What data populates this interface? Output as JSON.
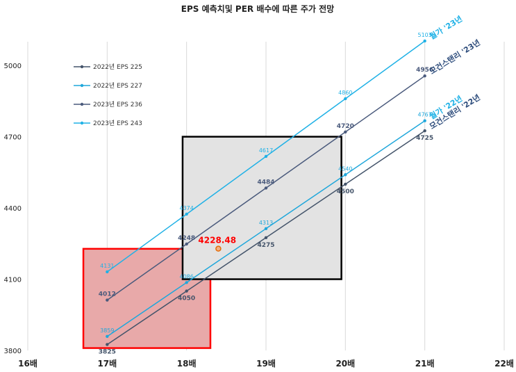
{
  "chart_data": {
    "type": "line",
    "title": "EPS  예측치및 PER 배수에 따른 주가 전망",
    "xlabel": "",
    "ylabel": "",
    "x": [
      17,
      18,
      19,
      20,
      21
    ],
    "xlim": [
      16,
      22
    ],
    "ylim": [
      3800,
      5100
    ],
    "yticks": [
      3800,
      4100,
      4400,
      4700,
      5000
    ],
    "xticks": [
      16,
      17,
      18,
      19,
      20,
      21,
      22
    ],
    "xtick_labels": [
      "16배",
      "17배",
      "18배",
      "19배",
      "20배",
      "21배",
      "22배"
    ],
    "grid": "vertical",
    "legend_position": "top-left",
    "series": [
      {
        "name": "2022년 EPS 225",
        "values": [
          3825,
          4050,
          4275,
          4500,
          4725
        ],
        "color": "#44546a",
        "labels": [
          "3825",
          "4050",
          "4275",
          "4500",
          "4725"
        ]
      },
      {
        "name": "2022년 EPS 227",
        "values": [
          3859,
          4086,
          4313,
          4540,
          4767
        ],
        "color": "#1fa7db",
        "labels": [
          "3859",
          "4086",
          "4313",
          "4540",
          "4767"
        ]
      },
      {
        "name": "2023년 EPS 236",
        "values": [
          4012,
          4248,
          4484,
          4720,
          4956
        ],
        "color": "#4a5a7c",
        "labels": [
          "4012",
          "4248",
          "4484",
          "4720",
          "4956"
        ]
      },
      {
        "name": "2023년 EPS 243",
        "values": [
          4131,
          4374,
          4617,
          4860,
          5103
        ],
        "color": "#1fb1e6",
        "labels": [
          "4131",
          "4374",
          "4617",
          "4860",
          "5103"
        ]
      }
    ],
    "current_point": {
      "x": 18.4,
      "value": 4228.48,
      "label": "4228.48",
      "color": "#ff0000"
    },
    "boxes": [
      {
        "name": "red-box",
        "x0": 16.7,
        "x1": 18.3,
        "y0": 3810,
        "y1": 4228,
        "fill": "#e8a9a9",
        "stroke": "#ff0000"
      },
      {
        "name": "grey-box",
        "x0": 17.95,
        "x1": 19.95,
        "y0": 4100,
        "y1": 4700,
        "fill": "#e3e3e3",
        "stroke": "#000000"
      }
    ],
    "annotations": [
      {
        "text": "월가 '23년",
        "series": 3,
        "color": "#1fb1e6"
      },
      {
        "text": "모건스탠리 '23년",
        "series": 2,
        "color": "#2f4e7d"
      },
      {
        "text": "월가 '22년",
        "series": 1,
        "color": "#1fb1e6"
      },
      {
        "text": "모건스탠리 '22년",
        "series": 0,
        "color": "#2f4e7d"
      }
    ]
  }
}
